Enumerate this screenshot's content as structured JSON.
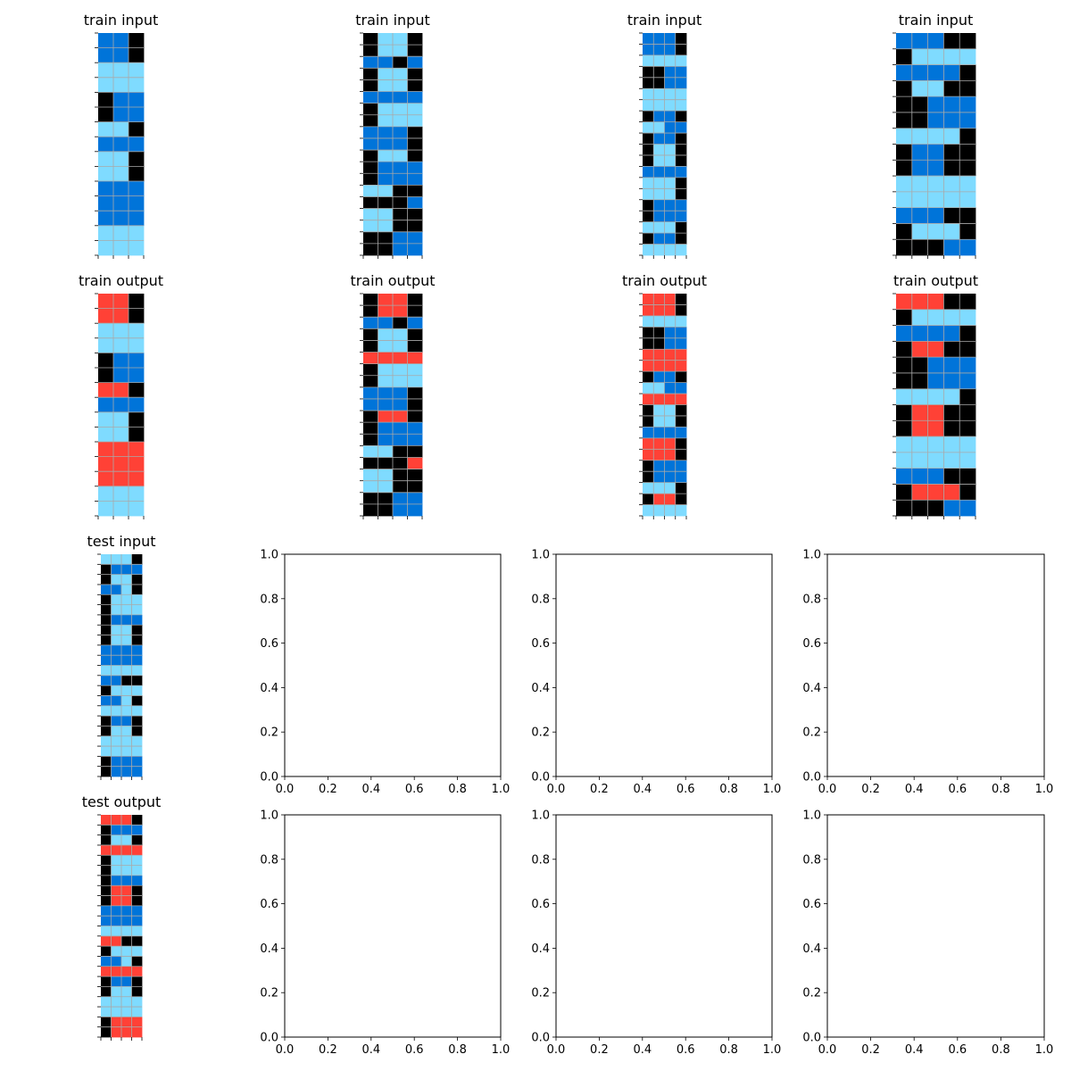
{
  "palette": {
    "0": "#000000",
    "1": "#0074D9",
    "2": "#FF4136",
    "8": "#7FDBFF"
  },
  "grid_line_color": "#A9A9A9",
  "titles": {
    "train_input": "train input",
    "train_output": "train output",
    "test_input": "test input",
    "test_output": "test output"
  },
  "empty_axes_ticks": [
    "0.0",
    "0.2",
    "0.4",
    "0.6",
    "0.8",
    "1.0"
  ],
  "train": [
    {
      "input": [
        [
          1,
          1,
          0
        ],
        [
          1,
          1,
          0
        ],
        [
          8,
          8,
          8
        ],
        [
          8,
          8,
          8
        ],
        [
          0,
          1,
          1
        ],
        [
          0,
          1,
          1
        ],
        [
          8,
          8,
          0
        ],
        [
          1,
          1,
          1
        ],
        [
          8,
          8,
          0
        ],
        [
          8,
          8,
          0
        ],
        [
          1,
          1,
          1
        ],
        [
          1,
          1,
          1
        ],
        [
          1,
          1,
          1
        ],
        [
          8,
          8,
          8
        ],
        [
          8,
          8,
          8
        ]
      ],
      "output": [
        [
          2,
          2,
          0
        ],
        [
          2,
          2,
          0
        ],
        [
          8,
          8,
          8
        ],
        [
          8,
          8,
          8
        ],
        [
          0,
          1,
          1
        ],
        [
          0,
          1,
          1
        ],
        [
          2,
          2,
          0
        ],
        [
          1,
          1,
          1
        ],
        [
          8,
          8,
          0
        ],
        [
          8,
          8,
          0
        ],
        [
          2,
          2,
          2
        ],
        [
          2,
          2,
          2
        ],
        [
          2,
          2,
          2
        ],
        [
          8,
          8,
          8
        ],
        [
          8,
          8,
          8
        ]
      ]
    },
    {
      "input": [
        [
          0,
          8,
          8,
          0
        ],
        [
          0,
          8,
          8,
          0
        ],
        [
          1,
          1,
          0,
          1
        ],
        [
          0,
          8,
          8,
          0
        ],
        [
          0,
          8,
          8,
          0
        ],
        [
          1,
          1,
          1,
          1
        ],
        [
          0,
          8,
          8,
          8
        ],
        [
          0,
          8,
          8,
          8
        ],
        [
          1,
          1,
          1,
          0
        ],
        [
          1,
          1,
          1,
          0
        ],
        [
          0,
          8,
          8,
          0
        ],
        [
          0,
          1,
          1,
          1
        ],
        [
          0,
          1,
          1,
          1
        ],
        [
          8,
          8,
          0,
          0
        ],
        [
          0,
          0,
          0,
          1
        ],
        [
          8,
          8,
          0,
          0
        ],
        [
          8,
          8,
          0,
          0
        ],
        [
          0,
          0,
          1,
          1
        ],
        [
          0,
          0,
          1,
          1
        ]
      ],
      "output": [
        [
          0,
          2,
          2,
          0
        ],
        [
          0,
          2,
          2,
          0
        ],
        [
          1,
          1,
          0,
          1
        ],
        [
          0,
          8,
          8,
          0
        ],
        [
          0,
          8,
          8,
          0
        ],
        [
          2,
          2,
          2,
          2
        ],
        [
          0,
          8,
          8,
          8
        ],
        [
          0,
          8,
          8,
          8
        ],
        [
          1,
          1,
          1,
          0
        ],
        [
          1,
          1,
          1,
          0
        ],
        [
          0,
          2,
          2,
          0
        ],
        [
          0,
          1,
          1,
          1
        ],
        [
          0,
          1,
          1,
          1
        ],
        [
          8,
          8,
          0,
          0
        ],
        [
          0,
          0,
          0,
          2
        ],
        [
          8,
          8,
          0,
          0
        ],
        [
          8,
          8,
          0,
          0
        ],
        [
          0,
          0,
          1,
          1
        ],
        [
          0,
          0,
          1,
          1
        ]
      ]
    },
    {
      "input": [
        [
          1,
          1,
          1,
          0
        ],
        [
          1,
          1,
          1,
          0
        ],
        [
          8,
          8,
          8,
          8
        ],
        [
          0,
          0,
          1,
          1
        ],
        [
          0,
          0,
          1,
          1
        ],
        [
          8,
          8,
          8,
          8
        ],
        [
          8,
          8,
          8,
          8
        ],
        [
          0,
          1,
          1,
          0
        ],
        [
          8,
          8,
          1,
          1
        ],
        [
          0,
          1,
          1,
          0
        ],
        [
          0,
          8,
          8,
          0
        ],
        [
          0,
          8,
          8,
          0
        ],
        [
          1,
          1,
          1,
          1
        ],
        [
          8,
          8,
          8,
          0
        ],
        [
          8,
          8,
          8,
          0
        ],
        [
          0,
          1,
          1,
          1
        ],
        [
          0,
          1,
          1,
          1
        ],
        [
          8,
          8,
          8,
          0
        ],
        [
          0,
          1,
          1,
          0
        ],
        [
          8,
          8,
          8,
          8
        ]
      ],
      "output": [
        [
          2,
          2,
          2,
          0
        ],
        [
          2,
          2,
          2,
          0
        ],
        [
          8,
          8,
          8,
          8
        ],
        [
          0,
          0,
          1,
          1
        ],
        [
          0,
          0,
          1,
          1
        ],
        [
          2,
          2,
          2,
          2
        ],
        [
          2,
          2,
          2,
          2
        ],
        [
          0,
          1,
          1,
          0
        ],
        [
          8,
          8,
          1,
          1
        ],
        [
          2,
          2,
          2,
          2
        ],
        [
          0,
          8,
          8,
          0
        ],
        [
          0,
          8,
          8,
          0
        ],
        [
          1,
          1,
          1,
          1
        ],
        [
          2,
          2,
          2,
          0
        ],
        [
          2,
          2,
          2,
          0
        ],
        [
          0,
          1,
          1,
          1
        ],
        [
          0,
          1,
          1,
          1
        ],
        [
          8,
          8,
          8,
          0
        ],
        [
          0,
          2,
          2,
          0
        ],
        [
          8,
          8,
          8,
          8
        ]
      ]
    },
    {
      "input": [
        [
          1,
          1,
          1,
          0,
          0
        ],
        [
          0,
          8,
          8,
          8,
          8
        ],
        [
          1,
          1,
          1,
          1,
          0
        ],
        [
          0,
          8,
          8,
          0,
          0
        ],
        [
          0,
          0,
          1,
          1,
          1
        ],
        [
          0,
          0,
          1,
          1,
          1
        ],
        [
          8,
          8,
          8,
          8,
          0
        ],
        [
          0,
          1,
          1,
          0,
          0
        ],
        [
          0,
          1,
          1,
          0,
          0
        ],
        [
          8,
          8,
          8,
          8,
          8
        ],
        [
          8,
          8,
          8,
          8,
          8
        ],
        [
          1,
          1,
          1,
          0,
          0
        ],
        [
          0,
          8,
          8,
          8,
          0
        ],
        [
          0,
          0,
          0,
          1,
          1
        ]
      ],
      "output": [
        [
          2,
          2,
          2,
          0,
          0
        ],
        [
          0,
          8,
          8,
          8,
          8
        ],
        [
          1,
          1,
          1,
          1,
          0
        ],
        [
          0,
          2,
          2,
          0,
          0
        ],
        [
          0,
          0,
          1,
          1,
          1
        ],
        [
          0,
          0,
          1,
          1,
          1
        ],
        [
          8,
          8,
          8,
          8,
          0
        ],
        [
          0,
          2,
          2,
          0,
          0
        ],
        [
          0,
          2,
          2,
          0,
          0
        ],
        [
          8,
          8,
          8,
          8,
          8
        ],
        [
          8,
          8,
          8,
          8,
          8
        ],
        [
          1,
          1,
          1,
          0,
          0
        ],
        [
          0,
          2,
          2,
          2,
          0
        ],
        [
          0,
          0,
          0,
          1,
          1
        ]
      ]
    }
  ],
  "test": {
    "input": [
      [
        8,
        8,
        8,
        0
      ],
      [
        0,
        1,
        1,
        1
      ],
      [
        0,
        8,
        8,
        0
      ],
      [
        1,
        1,
        8,
        0
      ],
      [
        0,
        8,
        8,
        8
      ],
      [
        0,
        8,
        8,
        8
      ],
      [
        0,
        1,
        1,
        1
      ],
      [
        0,
        8,
        8,
        0
      ],
      [
        0,
        8,
        8,
        0
      ],
      [
        1,
        1,
        1,
        1
      ],
      [
        1,
        1,
        1,
        1
      ],
      [
        8,
        8,
        8,
        8
      ],
      [
        1,
        1,
        0,
        0
      ],
      [
        0,
        8,
        8,
        8
      ],
      [
        1,
        1,
        8,
        0
      ],
      [
        8,
        8,
        8,
        8
      ],
      [
        0,
        1,
        1,
        0
      ],
      [
        0,
        8,
        8,
        0
      ],
      [
        8,
        8,
        8,
        8
      ],
      [
        8,
        8,
        8,
        8
      ],
      [
        0,
        1,
        1,
        1
      ],
      [
        0,
        1,
        1,
        1
      ]
    ],
    "output": [
      [
        2,
        2,
        2,
        0
      ],
      [
        0,
        1,
        1,
        1
      ],
      [
        0,
        8,
        8,
        0
      ],
      [
        2,
        2,
        2,
        2
      ],
      [
        0,
        8,
        8,
        8
      ],
      [
        0,
        8,
        8,
        8
      ],
      [
        0,
        1,
        1,
        1
      ],
      [
        0,
        2,
        2,
        0
      ],
      [
        0,
        2,
        2,
        0
      ],
      [
        1,
        1,
        1,
        1
      ],
      [
        1,
        1,
        1,
        1
      ],
      [
        8,
        8,
        8,
        8
      ],
      [
        2,
        2,
        0,
        0
      ],
      [
        0,
        8,
        8,
        8
      ],
      [
        1,
        1,
        8,
        0
      ],
      [
        2,
        2,
        2,
        2
      ],
      [
        0,
        1,
        1,
        0
      ],
      [
        0,
        8,
        8,
        0
      ],
      [
        8,
        8,
        8,
        8
      ],
      [
        8,
        8,
        8,
        8
      ],
      [
        0,
        2,
        2,
        2
      ],
      [
        0,
        2,
        2,
        2
      ]
    ]
  }
}
